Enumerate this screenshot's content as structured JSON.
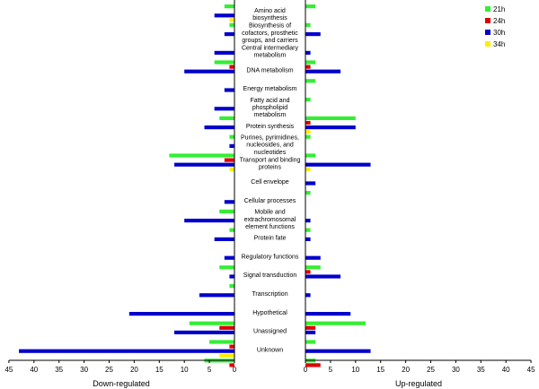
{
  "chart_data": {
    "type": "bar",
    "orientation": "horizontal-diverging",
    "series": [
      {
        "name": "21h",
        "color": "#33ee33",
        "down": [
          2,
          1,
          0,
          4,
          0,
          0,
          3,
          1,
          13,
          0,
          0,
          3,
          1,
          0,
          3,
          1,
          0,
          9,
          5,
          6
        ],
        "up": [
          2,
          1,
          0,
          2,
          2,
          1,
          10,
          1,
          2,
          0,
          1,
          0,
          1,
          0,
          3,
          0,
          0,
          12,
          2,
          2
        ]
      },
      {
        "name": "24h",
        "color": "#dd0000",
        "down": [
          0,
          0,
          0,
          1,
          0,
          0,
          0,
          0,
          2,
          0,
          0,
          0,
          0,
          0,
          0,
          0,
          0,
          3,
          1,
          1
        ],
        "up": [
          0,
          0,
          0,
          1,
          0,
          0,
          1,
          0,
          0,
          0,
          0,
          0,
          0,
          0,
          1,
          0,
          0,
          2,
          0,
          3
        ]
      },
      {
        "name": "30h",
        "color": "#0000cc",
        "down": [
          4,
          2,
          4,
          10,
          2,
          4,
          6,
          1,
          12,
          0,
          2,
          10,
          4,
          2,
          1,
          7,
          21,
          12,
          43,
          0
        ],
        "up": [
          0,
          3,
          1,
          7,
          0,
          0,
          10,
          0,
          13,
          2,
          0,
          1,
          1,
          3,
          7,
          1,
          9,
          2,
          13,
          0
        ]
      },
      {
        "name": "34h",
        "color": "#ffee00",
        "down": [
          1,
          0,
          0,
          0,
          0,
          0,
          0,
          0,
          1,
          0,
          0,
          0,
          0,
          0,
          0,
          0,
          0,
          0,
          3,
          0
        ],
        "up": [
          0,
          0,
          0,
          0,
          0,
          0,
          1,
          0,
          1,
          0,
          0,
          0,
          0,
          0,
          0,
          0,
          0,
          0,
          0,
          0
        ]
      }
    ],
    "categories": [
      [
        "Amino acid",
        "biosynthesis"
      ],
      [
        "Biosynthesis of",
        "cofactors, prosthetic",
        "groups, and carriers"
      ],
      [
        "Central intermediary",
        "metabolism"
      ],
      [
        "DNA metabolism"
      ],
      [
        "Energy metabolism"
      ],
      [
        "Fatty acid and",
        "phospholipid",
        "metabolism"
      ],
      [
        "Protein synthesis"
      ],
      [
        "Purines, pyrimidines,",
        "nucleosides, and",
        "nucleotides"
      ],
      [
        "Transport and binding",
        "proteins"
      ],
      [
        "Cell envelope"
      ],
      [
        "Cellular processes"
      ],
      [
        "Mobile and",
        "extrachromosomal",
        "element functions"
      ],
      [
        "Protein fate"
      ],
      [
        "Regulatory functions"
      ],
      [
        "Signal transduction"
      ],
      [
        "Transcription"
      ],
      [
        "Hypothetical"
      ],
      [
        "Unassigned"
      ],
      [
        "Unknown"
      ],
      []
    ],
    "x_ticks_left": [
      "45",
      "40",
      "35",
      "30",
      "25",
      "20",
      "15",
      "10",
      "5",
      "0"
    ],
    "x_ticks_right": [
      "0",
      "5",
      "10",
      "15",
      "20",
      "25",
      "30",
      "35",
      "40",
      "45"
    ],
    "xlim": [
      0,
      45
    ],
    "xlabel_left": "Down-regulated",
    "xlabel_right": "Up-regulated",
    "legend_position": "top-right"
  }
}
